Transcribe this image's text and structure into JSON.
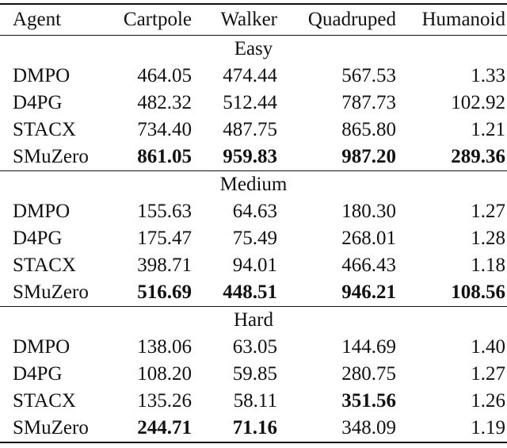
{
  "columns": [
    "Agent",
    "Cartpole",
    "Walker",
    "Quadruped",
    "Humanoid"
  ],
  "sections": [
    {
      "label": "Easy",
      "rows": [
        {
          "agent": "DMPO",
          "cartpole": "464.05",
          "walker": "474.44",
          "quadruped": "567.53",
          "humanoid": "1.33",
          "bold": []
        },
        {
          "agent": "D4PG",
          "cartpole": "482.32",
          "walker": "512.44",
          "quadruped": "787.73",
          "humanoid": "102.92",
          "bold": []
        },
        {
          "agent": "STACX",
          "cartpole": "734.40",
          "walker": "487.75",
          "quadruped": "865.80",
          "humanoid": "1.21",
          "bold": []
        },
        {
          "agent": "SMuZero",
          "cartpole": "861.05",
          "walker": "959.83",
          "quadruped": "987.20",
          "humanoid": "289.36",
          "bold": [
            "cartpole",
            "walker",
            "quadruped",
            "humanoid"
          ]
        }
      ]
    },
    {
      "label": "Medium",
      "rows": [
        {
          "agent": "DMPO",
          "cartpole": "155.63",
          "walker": "64.63",
          "quadruped": "180.30",
          "humanoid": "1.27",
          "bold": []
        },
        {
          "agent": "D4PG",
          "cartpole": "175.47",
          "walker": "75.49",
          "quadruped": "268.01",
          "humanoid": "1.28",
          "bold": []
        },
        {
          "agent": "STACX",
          "cartpole": "398.71",
          "walker": "94.01",
          "quadruped": "466.43",
          "humanoid": "1.18",
          "bold": []
        },
        {
          "agent": "SMuZero",
          "cartpole": "516.69",
          "walker": "448.51",
          "quadruped": "946.21",
          "humanoid": "108.56",
          "bold": [
            "cartpole",
            "walker",
            "quadruped",
            "humanoid"
          ]
        }
      ]
    },
    {
      "label": "Hard",
      "rows": [
        {
          "agent": "DMPO",
          "cartpole": "138.06",
          "walker": "63.05",
          "quadruped": "144.69",
          "humanoid": "1.40",
          "bold": []
        },
        {
          "agent": "D4PG",
          "cartpole": "108.20",
          "walker": "59.85",
          "quadruped": "280.75",
          "humanoid": "1.27",
          "bold": []
        },
        {
          "agent": "STACX",
          "cartpole": "135.26",
          "walker": "58.11",
          "quadruped": "351.56",
          "humanoid": "1.26",
          "bold": [
            "quadruped"
          ]
        },
        {
          "agent": "SMuZero",
          "cartpole": "244.71",
          "walker": "71.16",
          "quadruped": "348.09",
          "humanoid": "1.19",
          "bold": [
            "cartpole",
            "walker"
          ]
        }
      ]
    }
  ]
}
